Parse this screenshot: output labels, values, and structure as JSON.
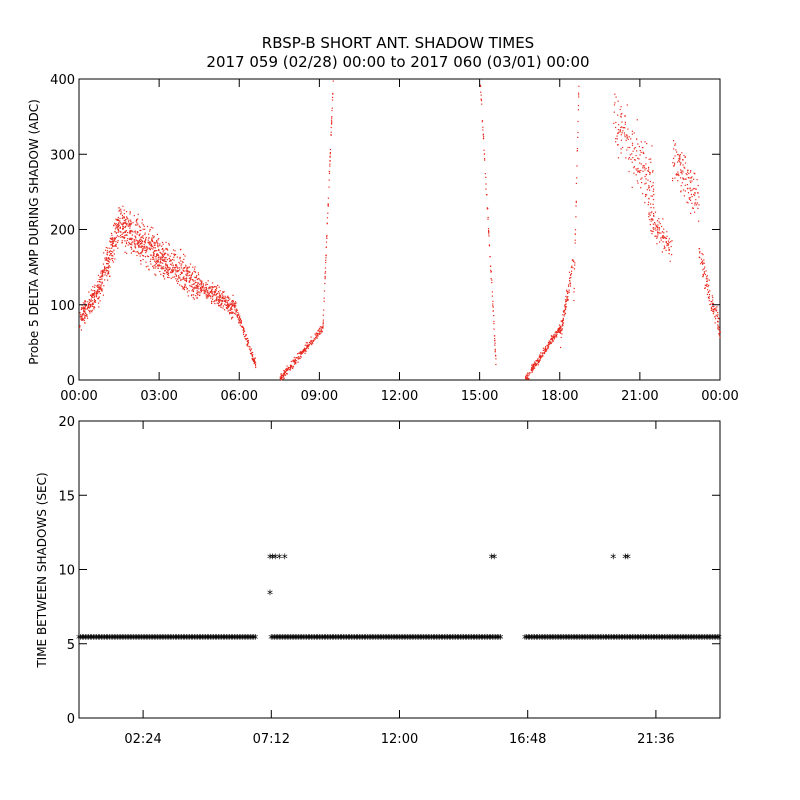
{
  "title": "RBSP-B SHORT ANT. SHADOW TIMES",
  "subtitle": "2017 059 (02/28) 00:00 to 2017 060 (03/01) 00:00",
  "colors": {
    "amp_points": "#e8281e",
    "time_points": "#000000",
    "axes": "#000000"
  },
  "chart_data": [
    {
      "type": "scatter",
      "ylabel": "Probe 5 DELTA AMP DURING SHADOW (ADC)",
      "xlabel": "",
      "xlim_hours": [
        0,
        24
      ],
      "ylim": [
        0,
        400
      ],
      "x_ticks": [
        0,
        3,
        6,
        9,
        12,
        15,
        18,
        21,
        24
      ],
      "x_tick_labels": [
        "00:00",
        "03:00",
        "06:00",
        "09:00",
        "12:00",
        "15:00",
        "18:00",
        "21:00",
        "00:00"
      ],
      "y_ticks": [
        0,
        100,
        200,
        300,
        400
      ],
      "y_tick_labels": [
        "0",
        "100",
        "200",
        "300",
        "400"
      ],
      "grid": false,
      "series_name": "",
      "points_note": "",
      "clusters": [
        {
          "x_start": 0.0,
          "x_end": 0.7,
          "y_start": 80,
          "y_end": 120,
          "spread": 22,
          "density": 160
        },
        {
          "x_start": 0.7,
          "x_end": 1.5,
          "y_start": 120,
          "y_end": 210,
          "spread": 35,
          "density": 220
        },
        {
          "x_start": 1.5,
          "x_end": 3.0,
          "y_start": 205,
          "y_end": 165,
          "spread": 40,
          "density": 380
        },
        {
          "x_start": 3.0,
          "x_end": 4.5,
          "y_start": 165,
          "y_end": 125,
          "spread": 35,
          "density": 330
        },
        {
          "x_start": 4.5,
          "x_end": 5.9,
          "y_start": 125,
          "y_end": 95,
          "spread": 20,
          "density": 260
        },
        {
          "x_start": 5.9,
          "x_end": 6.6,
          "y_start": 90,
          "y_end": 20,
          "spread": 10,
          "density": 110
        },
        {
          "x_start": 7.5,
          "x_end": 9.1,
          "y_start": 2,
          "y_end": 70,
          "spread": 8,
          "density": 200
        },
        {
          "x_start": 9.1,
          "x_end": 9.5,
          "y_start": 60,
          "y_end": 400,
          "spread": 8,
          "density": 70
        },
        {
          "x_start": 15.0,
          "x_end": 15.6,
          "y_start": 400,
          "y_end": 20,
          "spread": 12,
          "density": 80
        },
        {
          "x_start": 16.7,
          "x_end": 18.0,
          "y_start": 2,
          "y_end": 70,
          "spread": 8,
          "density": 200
        },
        {
          "x_start": 18.0,
          "x_end": 18.5,
          "y_start": 60,
          "y_end": 160,
          "spread": 20,
          "density": 90
        },
        {
          "x_start": 18.5,
          "x_end": 18.7,
          "y_start": 100,
          "y_end": 400,
          "spread": 12,
          "density": 30
        },
        {
          "x_start": 20.0,
          "x_end": 21.5,
          "y_start": 350,
          "y_end": 260,
          "spread": 60,
          "density": 180
        },
        {
          "x_start": 21.3,
          "x_end": 22.2,
          "y_start": 220,
          "y_end": 170,
          "spread": 30,
          "density": 110
        },
        {
          "x_start": 22.2,
          "x_end": 23.2,
          "y_start": 300,
          "y_end": 240,
          "spread": 50,
          "density": 130
        },
        {
          "x_start": 23.2,
          "x_end": 24.0,
          "y_start": 170,
          "y_end": 60,
          "spread": 25,
          "density": 110
        }
      ]
    },
    {
      "type": "scatter",
      "ylabel": "TIME BETWEEN SHADOWS (SEC)",
      "xlabel": "",
      "xlim_hours": [
        0,
        24
      ],
      "ylim": [
        0,
        20
      ],
      "x_ticks": [
        2.4,
        7.2,
        12.0,
        16.8,
        21.6
      ],
      "x_tick_labels": [
        "02:24",
        "07:12",
        "12:00",
        "16:48",
        "21:36"
      ],
      "y_ticks": [
        0,
        5,
        10,
        15,
        20
      ],
      "y_tick_labels": [
        "0",
        "5",
        "10",
        "15",
        "20"
      ],
      "grid": false,
      "marker": "*",
      "baseline_value": 5.4,
      "baseline_segments": [
        [
          0.0,
          6.6
        ],
        [
          7.2,
          15.8
        ],
        [
          16.7,
          24.0
        ]
      ],
      "outliers": [
        {
          "x": 7.15,
          "y": 8.4
        },
        {
          "x": 7.15,
          "y": 10.8
        },
        {
          "x": 7.25,
          "y": 10.8
        },
        {
          "x": 7.35,
          "y": 10.8
        },
        {
          "x": 7.5,
          "y": 10.8
        },
        {
          "x": 7.7,
          "y": 10.8
        },
        {
          "x": 15.45,
          "y": 10.8
        },
        {
          "x": 15.55,
          "y": 10.8
        },
        {
          "x": 20.0,
          "y": 10.8
        },
        {
          "x": 20.45,
          "y": 10.8
        },
        {
          "x": 20.55,
          "y": 10.8
        }
      ]
    }
  ]
}
